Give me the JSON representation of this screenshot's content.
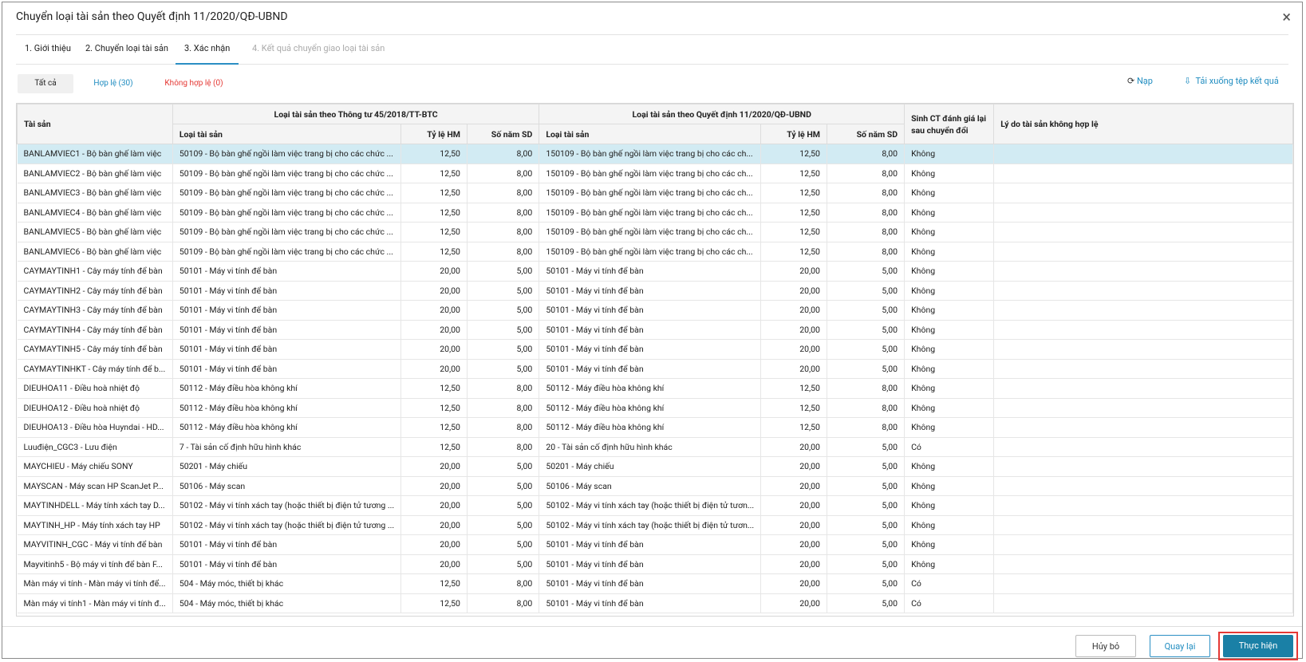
{
  "dialog": {
    "title": "Chuyển loại tài sản theo Quyết định 11/2020/QĐ-UBND",
    "tabs": [
      "1. Giới thiệu",
      "2. Chuyển loại tài sản",
      "3. Xác nhận",
      "4. Kết quả chuyển giao loại tài sản"
    ],
    "filters": [
      "Tất cả",
      "Hợp lệ (30)",
      "Không hợp lệ (0)"
    ],
    "actions": [
      "Nạp",
      "Tải xuống tệp kết quả"
    ],
    "table": {
      "headers": {
        "asset": "Tài sản",
        "old_group": "Loại tài sản theo Thông tư 45/2018/TT-BTC",
        "new_group": "Loại tài sản theo Quyết định 11/2020/QĐ-UBND",
        "regen": "Sinh CT đánh giá lại sau chuyển đổi",
        "reason": "Lý do tài sản không hợp lệ",
        "old_sub": [
          "Loại tài sản",
          "Tỷ lệ HM",
          "Số năm SD"
        ],
        "new_sub": [
          "Loại tài sản",
          "Tỷ lệ HM",
          "Số năm SD"
        ]
      },
      "rows": [
        [
          "BANLAMVIEC1 - Bộ bàn ghế làm việc",
          "50109 - Bộ bàn ghế ngồi làm việc trang bị cho các chức ...",
          "12,50",
          "8,00",
          "150109 - Bộ bàn ghế ngồi làm việc trang bị cho các ch...",
          "12,50",
          "8,00",
          "Không"
        ],
        [
          "BANLAMVIEC2 - Bộ bàn ghế làm việc",
          "50109 - Bộ bàn ghế ngồi làm việc trang bị cho các chức ...",
          "12,50",
          "8,00",
          "150109 - Bộ bàn ghế ngồi làm việc trang bị cho các ch...",
          "12,50",
          "8,00",
          "Không"
        ],
        [
          "BANLAMVIEC3 - Bộ bàn ghế làm việc",
          "50109 - Bộ bàn ghế ngồi làm việc trang bị cho các chức ...",
          "12,50",
          "8,00",
          "150109 - Bộ bàn ghế ngồi làm việc trang bị cho các ch...",
          "12,50",
          "8,00",
          "Không"
        ],
        [
          "BANLAMVIEC4 - Bộ bàn ghế làm việc",
          "50109 - Bộ bàn ghế ngồi làm việc trang bị cho các chức ...",
          "12,50",
          "8,00",
          "150109 - Bộ bàn ghế ngồi làm việc trang bị cho các ch...",
          "12,50",
          "8,00",
          "Không"
        ],
        [
          "BANLAMVIEC5 - Bộ bàn ghế làm việc",
          "50109 - Bộ bàn ghế ngồi làm việc trang bị cho các chức ...",
          "12,50",
          "8,00",
          "150109 - Bộ bàn ghế ngồi làm việc trang bị cho các ch...",
          "12,50",
          "8,00",
          "Không"
        ],
        [
          "BANLAMVIEC6 - Bộ bàn ghế làm việc",
          "50109 - Bộ bàn ghế ngồi làm việc trang bị cho các chức ...",
          "12,50",
          "8,00",
          "150109 - Bộ bàn ghế ngồi làm việc trang bị cho các ch...",
          "12,50",
          "8,00",
          "Không"
        ],
        [
          "CAYMAYTINH1 - Cây máy tính để bàn",
          "50101 - Máy vi tính để bàn",
          "20,00",
          "5,00",
          "50101 - Máy vi tính để bàn",
          "20,00",
          "5,00",
          "Không"
        ],
        [
          "CAYMAYTINH2 - Cây máy tính để bàn",
          "50101 - Máy vi tính để bàn",
          "20,00",
          "5,00",
          "50101 - Máy vi tính để bàn",
          "20,00",
          "5,00",
          "Không"
        ],
        [
          "CAYMAYTINH3 - Cây máy tính để bàn",
          "50101 - Máy vi tính để bàn",
          "20,00",
          "5,00",
          "50101 - Máy vi tính để bàn",
          "20,00",
          "5,00",
          "Không"
        ],
        [
          "CAYMAYTINH4 - Cây máy tính để bàn",
          "50101 - Máy vi tính để bàn",
          "20,00",
          "5,00",
          "50101 - Máy vi tính để bàn",
          "20,00",
          "5,00",
          "Không"
        ],
        [
          "CAYMAYTINH5 - Cây máy tính để bàn",
          "50101 - Máy vi tính để bàn",
          "20,00",
          "5,00",
          "50101 - Máy vi tính để bàn",
          "20,00",
          "5,00",
          "Không"
        ],
        [
          "CAYMAYTINHKT - Cây máy tính để b...",
          "50101 - Máy vi tính để bàn",
          "20,00",
          "5,00",
          "50101 - Máy vi tính để bàn",
          "20,00",
          "5,00",
          "Không"
        ],
        [
          "DIEUHOA11 - Điều hoà nhiệt độ",
          "50112 - Máy điều hòa không khí",
          "12,50",
          "8,00",
          "50112 - Máy điều hòa không khí",
          "12,50",
          "8,00",
          "Không"
        ],
        [
          "DIEUHOA12 - Điều hoà nhiệt độ",
          "50112 - Máy điều hòa không khí",
          "12,50",
          "8,00",
          "50112 - Máy điều hòa không khí",
          "12,50",
          "8,00",
          "Không"
        ],
        [
          "DIEUHOA13 - Điều hòa Huyndai - HD...",
          "50112 - Máy điều hòa không khí",
          "12,50",
          "8,00",
          "50112 - Máy điều hòa không khí",
          "12,50",
          "8,00",
          "Không"
        ],
        [
          "Luuđiện_CGC3 - Lưu điện",
          "7 - Tài sản cố định hữu hình khác",
          "12,50",
          "8,00",
          "20 - Tài sản cố định hữu hình khác",
          "20,00",
          "5,00",
          "Có"
        ],
        [
          "MAYCHIEU - Máy chiếu SONY",
          "50201 - Máy chiếu",
          "20,00",
          "5,00",
          "50201 - Máy chiếu",
          "20,00",
          "5,00",
          "Không"
        ],
        [
          "MAYSCAN - Máy scan HP ScanJet P...",
          "50106 - Máy scan",
          "20,00",
          "5,00",
          "50106 - Máy scan",
          "20,00",
          "5,00",
          "Không"
        ],
        [
          "MAYTINHDELL - Máy tính xách tay D...",
          "50102 - Máy vi tính xách tay (hoặc thiết bị điện tử tương ...",
          "20,00",
          "5,00",
          "50102 - Máy vi tính xách tay (hoặc thiết bị điện tử tươn...",
          "20,00",
          "5,00",
          "Không"
        ],
        [
          "MAYTINH_HP - Máy tính xách tay HP",
          "50102 - Máy vi tính xách tay (hoặc thiết bị điện tử tương ...",
          "20,00",
          "5,00",
          "50102 - Máy vi tính xách tay (hoặc thiết bị điện tử tươn...",
          "20,00",
          "5,00",
          "Không"
        ],
        [
          "MAYVITINH_CGC - Máy vi tính để bàn",
          "50101 - Máy vi tính để bàn",
          "20,00",
          "5,00",
          "50101 - Máy vi tính để bàn",
          "20,00",
          "5,00",
          "Không"
        ],
        [
          "Mayvitinh5 - Bộ máy vi tính để bàn F...",
          "50101 - Máy vi tính để bàn",
          "20,00",
          "5,00",
          "50101 - Máy vi tính để bàn",
          "20,00",
          "5,00",
          "Không"
        ],
        [
          "Màn máy vi tính - Màn máy vi tính để...",
          "504 - Máy móc, thiết bị khác",
          "12,50",
          "8,00",
          "50101 - Máy vi tính để bàn",
          "20,00",
          "5,00",
          "Có"
        ],
        [
          "Màn máy vi tính1 - Màn máy vi tính đ...",
          "504 - Máy móc, thiết bị khác",
          "12,50",
          "8,00",
          "50101 - Máy vi tính để bàn",
          "20,00",
          "5,00",
          "Có"
        ]
      ]
    },
    "buttons": [
      "Hủy bỏ",
      "Quay lại",
      "Thực hiện"
    ]
  }
}
